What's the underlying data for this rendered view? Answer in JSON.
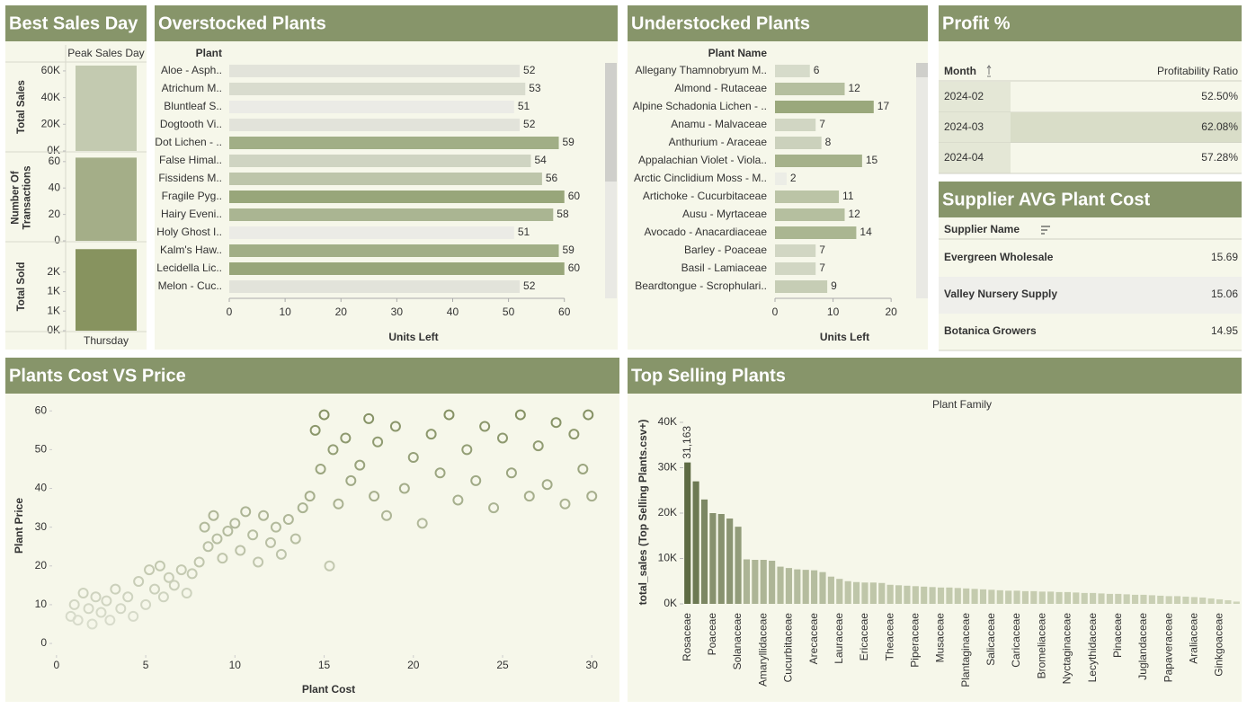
{
  "chart_data": [
    {
      "type": "bar",
      "title": "Best Sales Day",
      "column_header": "Peak Sales Day",
      "categories": [
        "Thursday"
      ],
      "panels": [
        {
          "axis_label": "Total Sales",
          "values": [
            64000
          ],
          "color": "#c3cab0",
          "ylim": [
            0,
            66000
          ],
          "yticks": [
            {
              "value": 0,
              "label": "0K"
            },
            {
              "value": 20000,
              "label": "20K"
            },
            {
              "value": 40000,
              "label": "40K"
            },
            {
              "value": 60000,
              "label": "60K"
            }
          ]
        },
        {
          "axis_label": "Number Of Transactions",
          "values": [
            63
          ],
          "color": "#a4ae88",
          "ylim": [
            0,
            66
          ],
          "yticks": [
            0,
            20,
            40,
            60
          ]
        },
        {
          "axis_label": "Total Sold",
          "values": [
            2500
          ],
          "color": "#87935f",
          "ylim": [
            0,
            2700
          ],
          "yticks": [
            {
              "value": 0,
              "label": "0K"
            },
            {
              "value": 600,
              "label": "1K"
            },
            {
              "value": 1200,
              "label": "1K"
            },
            {
              "value": 1800,
              "label": "2K"
            }
          ]
        }
      ]
    },
    {
      "type": "bar",
      "orientation": "horizontal",
      "title": "Overstocked Plants",
      "column_header": "Plant",
      "x_label": "Units Left",
      "categories": [
        "Aloe - Asph..",
        "Atrichum M..",
        "Bluntleaf S..",
        "Dogtooth Vi..",
        "Dot Lichen - ..",
        "False Himal..",
        "Fissidens M..",
        "Fragile Pyg..",
        "Hairy Eveni..",
        "Holy Ghost I..",
        "Kalm's Haw..",
        "Lecidella Lic..",
        "Melon - Cuc.."
      ],
      "values": [
        52,
        53,
        51,
        52,
        59,
        54,
        56,
        60,
        58,
        51,
        59,
        60,
        52
      ],
      "color_range": [
        "#ebebe6",
        "#98a67a"
      ],
      "color_domain": [
        51,
        60
      ],
      "xlim": [
        0,
        66
      ],
      "xticks": [
        0,
        10,
        20,
        30,
        40,
        50,
        60
      ]
    },
    {
      "type": "bar",
      "orientation": "horizontal",
      "title": "Understocked Plants",
      "column_header": "Plant Name",
      "x_label": "Units Left",
      "categories": [
        "Allegany Thamnobryum M..",
        "Almond - Rutaceae",
        "Alpine Schadonia Lichen - ..",
        "Anamu - Malvaceae",
        "Anthurium - Araceae",
        "Appalachian Violet - Viola..",
        "Arctic Cinclidium Moss - M..",
        "Artichoke - Cucurbitaceae",
        "Ausu - Myrtaceae",
        "Avocado - Anacardiaceae",
        "Barley - Poaceae",
        "Basil - Lamiaceae",
        "Beardtongue - Scrophulari.."
      ],
      "values": [
        6,
        12,
        17,
        7,
        8,
        15,
        2,
        11,
        12,
        14,
        7,
        7,
        9
      ],
      "color_range": [
        "#ecede6",
        "#9aa87c"
      ],
      "color_domain": [
        2,
        17
      ],
      "xlim": [
        0,
        24
      ],
      "xticks": [
        0,
        10,
        20
      ]
    },
    {
      "type": "scatter",
      "title": "Plants Cost VS Price",
      "x_label": "Plant Cost",
      "y_label": "Plant Price",
      "x": [
        0.8,
        1,
        1.2,
        1.5,
        1.8,
        2,
        2.2,
        2.5,
        2.8,
        3,
        3.3,
        3.6,
        4,
        4.3,
        4.6,
        5,
        5.2,
        5.5,
        5.8,
        6,
        6.3,
        6.6,
        7,
        7.3,
        7.6,
        8,
        8.3,
        8.5,
        8.8,
        9,
        9.3,
        9.6,
        10,
        10.3,
        10.6,
        11,
        11.3,
        11.6,
        12,
        12.3,
        12.6,
        13,
        13.4,
        13.8,
        14.2,
        14.5,
        14.8,
        15,
        15.3,
        15.5,
        15.8,
        16.2,
        16.5,
        17,
        17.5,
        17.8,
        18,
        18.5,
        19,
        19.5,
        20,
        20.5,
        21,
        21.5,
        22,
        22.5,
        23,
        23.5,
        24,
        24.5,
        25,
        25.5,
        26,
        26.5,
        27,
        27.5,
        28,
        28.5,
        29,
        29.5,
        29.8,
        30
      ],
      "y": [
        7,
        10,
        6,
        13,
        9,
        5,
        12,
        8,
        11,
        6,
        14,
        9,
        12,
        7,
        16,
        10,
        19,
        14,
        20,
        12,
        17,
        15,
        19,
        13,
        18,
        21,
        30,
        25,
        33,
        27,
        22,
        29,
        31,
        24,
        34,
        28,
        21,
        33,
        26,
        30,
        23,
        32,
        27,
        35,
        38,
        55,
        45,
        59,
        20,
        50,
        36,
        53,
        42,
        46,
        58,
        38,
        52,
        33,
        56,
        40,
        48,
        31,
        54,
        44,
        59,
        37,
        50,
        42,
        56,
        35,
        53,
        44,
        59,
        38,
        51,
        41,
        57,
        36,
        54,
        45,
        59,
        38
      ],
      "color_range": [
        "#e6e8dc",
        "#7d8a5a"
      ],
      "xlim": [
        -1,
        31.5
      ],
      "ylim": [
        -3,
        64
      ],
      "xticks": [
        0,
        5,
        10,
        15,
        20,
        25,
        30
      ],
      "yticks": [
        0,
        10,
        20,
        30,
        40,
        50,
        60
      ]
    },
    {
      "type": "bar",
      "title": "Top Selling Plants",
      "x_label": "Plant Family",
      "y_label": "total_sales (Top Selling Plants.csv+)",
      "categories": [
        "Rosaceae",
        null,
        null,
        "Poaceae",
        null,
        null,
        "Solanaceae",
        null,
        null,
        "Amaryllidaceae",
        null,
        null,
        "Cucurbitaceae",
        null,
        null,
        "Arecaceae",
        null,
        null,
        "Lauraceae",
        null,
        null,
        "Ericaceae",
        null,
        null,
        "Theaceae",
        null,
        null,
        "Piperaceae",
        null,
        null,
        "Musaceae",
        null,
        null,
        "Plantaginaceae",
        null,
        null,
        "Salicaceae",
        null,
        null,
        "Caricaceae",
        null,
        null,
        "Bromeliaceae",
        null,
        null,
        "Nyctaginaceae",
        null,
        null,
        "Lecythidaceae",
        null,
        null,
        "Pinaceae",
        null,
        null,
        "Juglandaceae",
        null,
        null,
        "Papaveraceae",
        null,
        null,
        "Araliaceae",
        null,
        null,
        "Ginkgoaceae",
        null,
        null
      ],
      "values": [
        31163,
        27000,
        23000,
        20000,
        19800,
        18800,
        17000,
        9800,
        9700,
        9700,
        9500,
        8200,
        7900,
        7600,
        7500,
        7400,
        7000,
        6000,
        5500,
        5000,
        4800,
        4700,
        4700,
        4600,
        4200,
        4100,
        4000,
        3900,
        3800,
        3700,
        3600,
        3600,
        3500,
        3400,
        3300,
        3200,
        3100,
        3000,
        2900,
        2900,
        2800,
        2800,
        2700,
        2700,
        2600,
        2600,
        2500,
        2400,
        2400,
        2300,
        2200,
        2200,
        2100,
        2000,
        2000,
        1900,
        1800,
        1700,
        1700,
        1600,
        1500,
        1400,
        1200,
        1000,
        800,
        500
      ],
      "value_labels": [
        "31,163",
        null,
        null,
        null,
        null,
        null,
        null,
        null,
        null,
        null,
        null,
        null,
        null,
        null,
        null,
        null,
        null,
        null,
        null,
        null,
        null,
        null,
        null,
        null,
        null,
        null,
        null,
        null,
        null,
        null,
        null,
        null,
        null,
        null,
        null,
        null,
        null,
        null,
        null,
        null,
        null,
        null,
        null,
        null,
        null,
        null,
        null,
        null,
        null,
        null,
        null,
        null,
        null,
        null,
        null,
        null,
        null,
        null,
        null,
        null,
        null,
        null,
        null,
        null,
        null,
        null
      ],
      "color_range": [
        "#d0d6bb",
        "#5b6840"
      ],
      "color_domain": [
        0,
        32000
      ],
      "ylim": [
        0,
        40000
      ],
      "yticks": [
        {
          "value": 0,
          "label": "0K"
        },
        {
          "value": 10000,
          "label": "10K"
        },
        {
          "value": 20000,
          "label": "20K"
        },
        {
          "value": 30000,
          "label": "30K"
        },
        {
          "value": 40000,
          "label": "40K"
        }
      ]
    }
  ],
  "tables": {
    "profit": {
      "title": "Profit %",
      "columns": [
        "Month",
        "Profitability Ratio"
      ],
      "rows": [
        [
          "2024-02",
          "52.50%"
        ],
        [
          "2024-03",
          "62.08%"
        ],
        [
          "2024-04",
          "57.28%"
        ]
      ]
    },
    "supplier": {
      "title": "Supplier AVG Plant Cost",
      "columns": [
        "Supplier Name"
      ],
      "rows": [
        [
          "Evergreen Wholesale",
          15.69
        ],
        [
          "Valley Nursery Supply",
          15.06
        ],
        [
          "Botanica Growers",
          14.95
        ]
      ]
    }
  }
}
